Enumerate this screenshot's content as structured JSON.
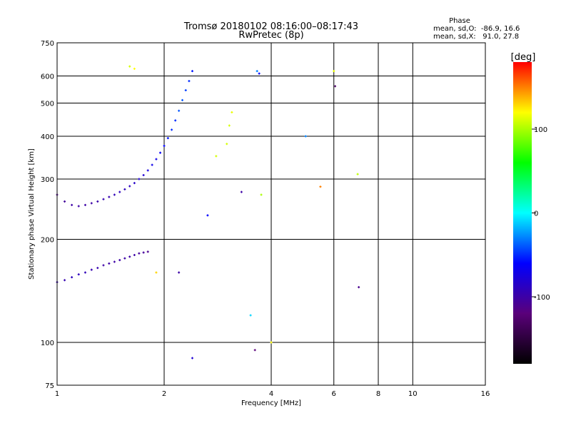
{
  "chart_data": {
    "type": "scatter",
    "title": "Tromsø 20180102 08:16:00–08:17:43",
    "subtitle": "RwPretec (8p)",
    "xlabel": "Frequency [MHz]",
    "ylabel": "Stationary phase Virtual Height [km]",
    "x_scale": "log",
    "y_scale": "log",
    "xlim": [
      1,
      16
    ],
    "ylim": [
      75,
      750
    ],
    "x_ticks": [
      1,
      2,
      4,
      6,
      8,
      10,
      16
    ],
    "x_tick_labels": [
      "1",
      "2",
      "4",
      "6",
      "8",
      "10",
      "16"
    ],
    "y_ticks": [
      75,
      100,
      200,
      300,
      400,
      500,
      600,
      750
    ],
    "y_tick_labels": [
      "75",
      "100",
      "200",
      "300",
      "400",
      "500",
      "600",
      "750"
    ],
    "grid": true,
    "stats": {
      "header": "Phase",
      "lines": [
        "mean, sd,O:  -86.9, 16.6",
        "mean, sd,X:   91.0, 27.8"
      ]
    },
    "colorbar": {
      "label": "[deg]",
      "range": [
        -180,
        180
      ],
      "ticks": [
        100,
        0,
        -100
      ],
      "tick_labels": [
        "100",
        "0",
        "-100"
      ],
      "colormap": "rainbow",
      "stops": [
        "#000000",
        "#5a007a",
        "#0000ff",
        "#00ffff",
        "#00ff00",
        "#ffff00",
        "#ff0000"
      ]
    },
    "series": [
      {
        "trace": "upper",
        "x": [
          1.0,
          1.05,
          1.1,
          1.15,
          1.2,
          1.25,
          1.3,
          1.35,
          1.4,
          1.45,
          1.5,
          1.55,
          1.6,
          1.65,
          1.7,
          1.75,
          1.8,
          1.85,
          1.9,
          1.95,
          2.0,
          2.05,
          2.1,
          2.15,
          2.2,
          2.25,
          2.3,
          2.35,
          2.4
        ],
        "y": [
          270,
          258,
          252,
          250,
          252,
          255,
          258,
          262,
          266,
          270,
          275,
          280,
          286,
          292,
          300,
          308,
          318,
          330,
          343,
          358,
          375,
          395,
          418,
          445,
          475,
          510,
          545,
          580,
          620
        ],
        "phase": [
          -110,
          -105,
          -100,
          -100,
          -100,
          -100,
          -98,
          -95,
          -95,
          -92,
          -90,
          -90,
          -88,
          -85,
          -80,
          -80,
          -75,
          -70,
          -70,
          -65,
          -60,
          -55,
          -50,
          -50,
          -40,
          -40,
          -45,
          -50,
          -55
        ]
      },
      {
        "trace": "lower",
        "x": [
          1.0,
          1.05,
          1.1,
          1.15,
          1.2,
          1.25,
          1.3,
          1.35,
          1.4,
          1.45,
          1.5,
          1.55,
          1.6,
          1.65,
          1.7,
          1.75,
          1.8
        ],
        "y": [
          150,
          152,
          155,
          158,
          160,
          163,
          165,
          168,
          170,
          172,
          174,
          176,
          178,
          180,
          182,
          183,
          184
        ],
        "phase": [
          -95,
          -95,
          -90,
          -90,
          -92,
          -95,
          -95,
          -100,
          -100,
          -100,
          -100,
          -100,
          -100,
          -100,
          -105,
          -105,
          -110
        ]
      },
      {
        "trace": "scattered",
        "x": [
          1.6,
          1.65,
          1.9,
          2.2,
          2.4,
          2.65,
          2.8,
          3.0,
          3.05,
          3.1,
          3.3,
          3.5,
          3.6,
          3.65,
          3.7,
          3.75,
          4.0,
          5.0,
          5.5,
          6.0,
          6.05,
          7.0,
          7.05
        ],
        "y": [
          640,
          630,
          160,
          160,
          90,
          235,
          350,
          380,
          430,
          470,
          275,
          120,
          95,
          620,
          610,
          270,
          100,
          400,
          285,
          620,
          560,
          310,
          145
        ],
        "phase": [
          110,
          120,
          130,
          -100,
          -80,
          -60,
          110,
          110,
          110,
          115,
          -100,
          -10,
          -120,
          -30,
          -60,
          100,
          120,
          -30,
          150,
          115,
          -130,
          105,
          -110
        ]
      }
    ]
  }
}
